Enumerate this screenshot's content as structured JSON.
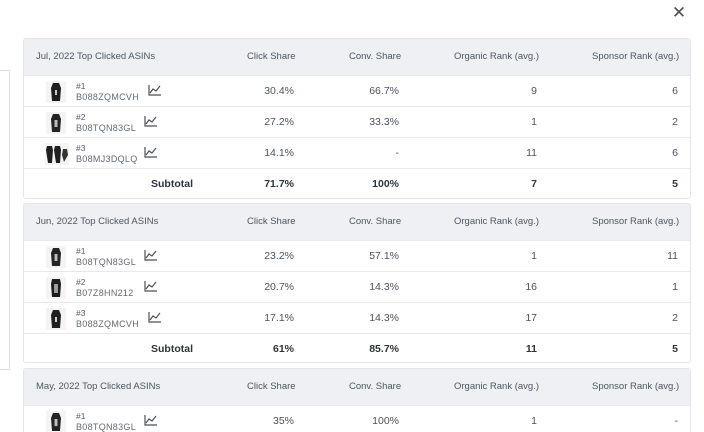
{
  "close_icon": "close-icon",
  "columns": {
    "click": "Click Share",
    "conv": "Conv. Share",
    "organic": "Organic Rank (avg.)",
    "sponsor": "Sponsor Rank (avg.)"
  },
  "sections": [
    {
      "title": "Jul, 2022 Top Clicked ASINs",
      "rows": [
        {
          "rank": "#1",
          "asin": "B088ZQMCVH",
          "click": "30.4%",
          "conv": "66.7%",
          "organic": "9",
          "sponsor": "6"
        },
        {
          "rank": "#2",
          "asin": "B08TQN83GL",
          "click": "27.2%",
          "conv": "33.3%",
          "organic": "1",
          "sponsor": "2"
        },
        {
          "rank": "#3",
          "asin": "B08MJ3DQLQ",
          "click": "14.1%",
          "conv": "-",
          "organic": "11",
          "sponsor": "6"
        }
      ],
      "subtotal": {
        "label": "Subtotal",
        "click": "71.7%",
        "conv": "100%",
        "organic": "7",
        "sponsor": "5"
      }
    },
    {
      "title": "Jun, 2022 Top Clicked ASINs",
      "rows": [
        {
          "rank": "#1",
          "asin": "B08TQN83GL",
          "click": "23.2%",
          "conv": "57.1%",
          "organic": "1",
          "sponsor": "11"
        },
        {
          "rank": "#2",
          "asin": "B07Z8HN212",
          "click": "20.7%",
          "conv": "14.3%",
          "organic": "16",
          "sponsor": "1"
        },
        {
          "rank": "#3",
          "asin": "B088ZQMCVH",
          "click": "17.1%",
          "conv": "14.3%",
          "organic": "17",
          "sponsor": "2"
        }
      ],
      "subtotal": {
        "label": "Subtotal",
        "click": "61%",
        "conv": "85.7%",
        "organic": "11",
        "sponsor": "5"
      }
    },
    {
      "title": "May, 2022 Top Clicked ASINs",
      "rows": [
        {
          "rank": "#1",
          "asin": "B08TQN83GL",
          "click": "35%",
          "conv": "100%",
          "organic": "1",
          "sponsor": "-"
        }
      ]
    }
  ]
}
